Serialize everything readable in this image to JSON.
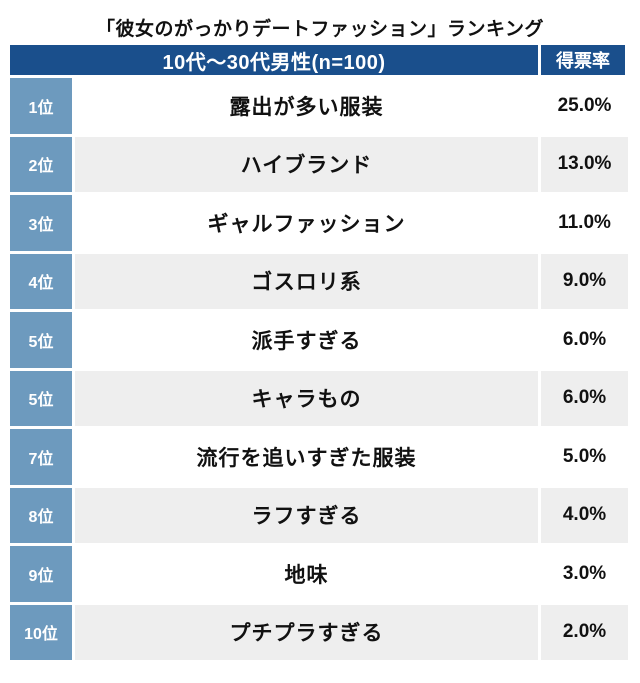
{
  "title": "「彼女のがっかりデートファッション」ランキング",
  "table": {
    "header_main": "10代〜30代男性(n=100)",
    "header_rate": "得票率",
    "rows": [
      {
        "rank": "1位",
        "item": "露出が多い服装",
        "rate": "25.0%"
      },
      {
        "rank": "2位",
        "item": "ハイブランド",
        "rate": "13.0%"
      },
      {
        "rank": "3位",
        "item": "ギャルファッション",
        "rate": "11.0%"
      },
      {
        "rank": "4位",
        "item": "ゴスロリ系",
        "rate": "9.0%"
      },
      {
        "rank": "5位",
        "item": "派手すぎる",
        "rate": "6.0%"
      },
      {
        "rank": "5位",
        "item": "キャラもの",
        "rate": "6.0%"
      },
      {
        "rank": "7位",
        "item": "流行を追いすぎた服装",
        "rate": "5.0%"
      },
      {
        "rank": "8位",
        "item": "ラフすぎる",
        "rate": "4.0%"
      },
      {
        "rank": "9位",
        "item": "地味",
        "rate": "3.0%"
      },
      {
        "rank": "10位",
        "item": "プチプラすぎる",
        "rate": "2.0%"
      }
    ]
  },
  "colors": {
    "header_bg": "#1a4f8c",
    "rank_bg": "#6d9abe",
    "row_alt_bg": "#eeeeee",
    "text": "#111111",
    "header_text": "#ffffff"
  },
  "chart_data": {
    "type": "table",
    "title": "「彼女のがっかりデートファッション」ランキング",
    "columns": [
      "10代〜30代男性(n=100)",
      "得票率"
    ],
    "rows": [
      {
        "rank": "1位",
        "item": "露出が多い服装",
        "rate_percent": 25.0
      },
      {
        "rank": "2位",
        "item": "ハイブランド",
        "rate_percent": 13.0
      },
      {
        "rank": "3位",
        "item": "ギャルファッション",
        "rate_percent": 11.0
      },
      {
        "rank": "4位",
        "item": "ゴスロリ系",
        "rate_percent": 9.0
      },
      {
        "rank": "5位",
        "item": "派手すぎる",
        "rate_percent": 6.0
      },
      {
        "rank": "5位",
        "item": "キャラもの",
        "rate_percent": 6.0
      },
      {
        "rank": "7位",
        "item": "流行を追いすぎた服装",
        "rate_percent": 5.0
      },
      {
        "rank": "8位",
        "item": "ラフすぎる",
        "rate_percent": 4.0
      },
      {
        "rank": "9位",
        "item": "地味",
        "rate_percent": 3.0
      },
      {
        "rank": "10位",
        "item": "プチプラすぎる",
        "rate_percent": 2.0
      }
    ]
  }
}
